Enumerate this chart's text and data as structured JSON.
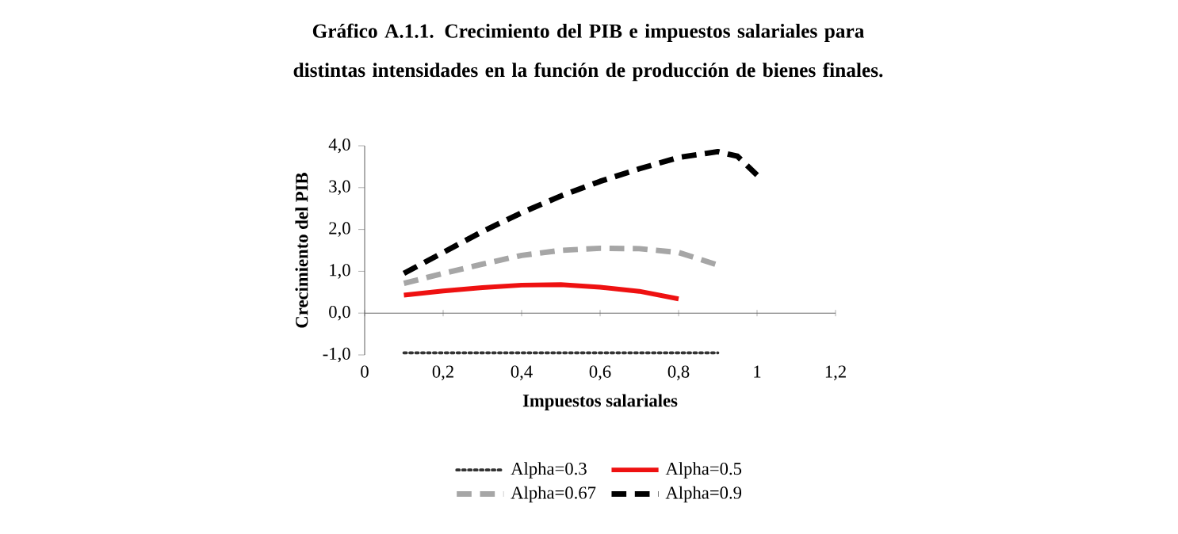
{
  "chart_data": {
    "type": "line",
    "title": "Gráfico A.1.1. Crecimiento del PIB e impuestos salariales para distintas intensidades en la función de producción de bienes finales.",
    "xlabel": "Impuestos salariales",
    "ylabel": "Crecimiento del PIB",
    "xlim": [
      0,
      1.2
    ],
    "ylim": [
      -1,
      4
    ],
    "xticks": [
      0,
      {
        "value": 0.2,
        "label": "0,2"
      },
      {
        "value": 0.4,
        "label": "0,4"
      },
      {
        "value": 0.6,
        "label": "0,6"
      },
      {
        "value": 0.8,
        "label": "0,8"
      },
      1,
      {
        "value": 1.2,
        "label": "1,2"
      }
    ],
    "yticks": [
      {
        "value": -1,
        "label": "-1,0"
      },
      {
        "value": 0,
        "label": "0,0"
      },
      {
        "value": 1,
        "label": "1,0"
      },
      {
        "value": 2,
        "label": "2,0"
      },
      {
        "value": 3,
        "label": "3,0"
      },
      {
        "value": 4,
        "label": "4,0"
      }
    ],
    "legend": "bottom",
    "series": [
      {
        "name": "Alpha=0.3",
        "color": "#333333",
        "line_style": "dotted",
        "x": [
          0.1,
          0.2,
          0.3,
          0.4,
          0.5,
          0.6,
          0.7,
          0.8,
          0.9
        ],
        "values": [
          -0.95,
          -0.95,
          -0.95,
          -0.95,
          -0.95,
          -0.95,
          -0.95,
          -0.95,
          -0.95
        ]
      },
      {
        "name": "Alpha=0.5",
        "color": "#ee1111",
        "line_style": "solid",
        "x": [
          0.1,
          0.2,
          0.3,
          0.4,
          0.5,
          0.6,
          0.7,
          0.8
        ],
        "values": [
          0.43,
          0.53,
          0.61,
          0.67,
          0.68,
          0.62,
          0.52,
          0.34
        ]
      },
      {
        "name": "Alpha=0.67",
        "color": "#a6a6a6",
        "line_style": "dashed",
        "x": [
          0.1,
          0.2,
          0.3,
          0.4,
          0.5,
          0.6,
          0.7,
          0.8,
          0.9
        ],
        "values": [
          0.71,
          0.95,
          1.17,
          1.38,
          1.5,
          1.55,
          1.54,
          1.45,
          1.15
        ]
      },
      {
        "name": "Alpha=0.9",
        "color": "#000000",
        "line_style": "dashed",
        "x": [
          0.1,
          0.2,
          0.3,
          0.4,
          0.5,
          0.6,
          0.7,
          0.8,
          0.9,
          0.95,
          1.0
        ],
        "values": [
          0.95,
          1.45,
          1.95,
          2.4,
          2.8,
          3.15,
          3.45,
          3.72,
          3.86,
          3.75,
          3.3
        ]
      }
    ]
  }
}
